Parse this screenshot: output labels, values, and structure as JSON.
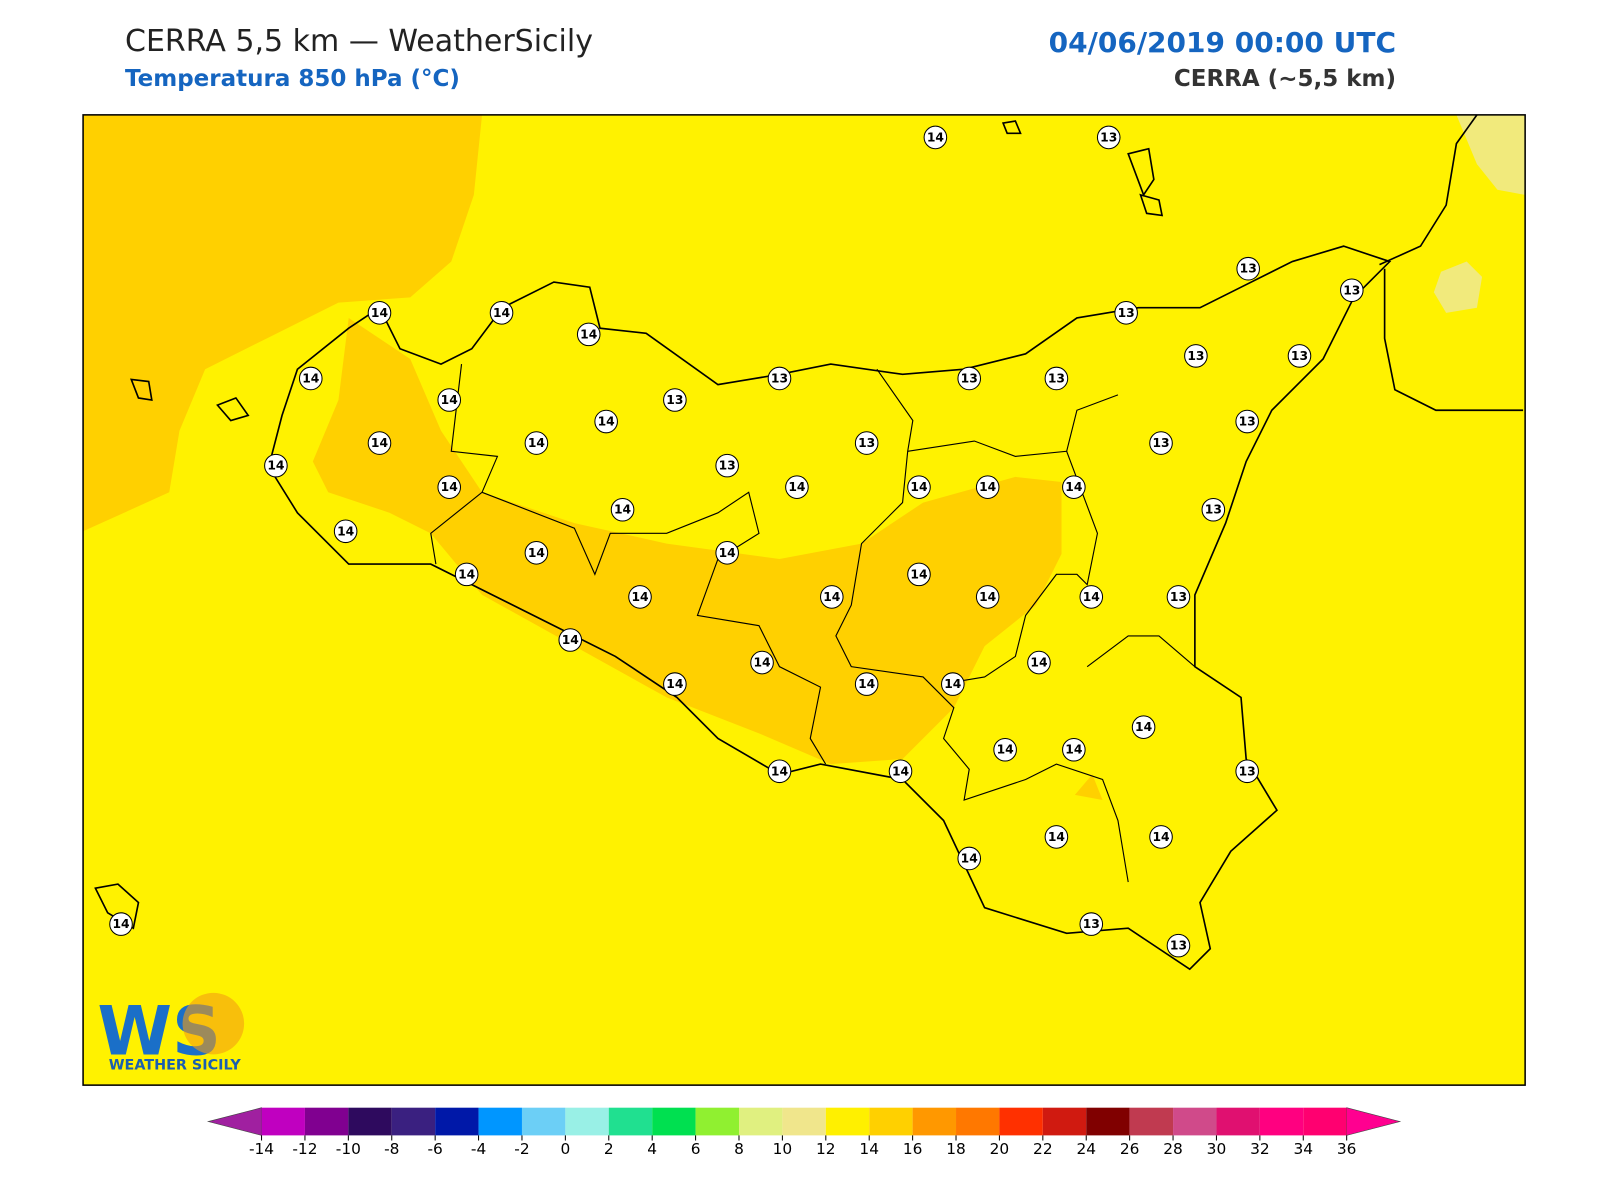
{
  "header": {
    "title": "CERRA 5,5 km — WeatherSicily",
    "subtitle": "Temperatura 850 hPa (°C)",
    "date": "04/06/2019 00:00 UTC",
    "model": "CERRA (~5,5 km)"
  },
  "stations": {
    "values": [
      14,
      13,
      13,
      13,
      14,
      14,
      14,
      13,
      13,
      13,
      14,
      13,
      13,
      13,
      14,
      13,
      14,
      13,
      14,
      14,
      13,
      13,
      14,
      13,
      14,
      14,
      14,
      14,
      14,
      14,
      13,
      14,
      14,
      14,
      14,
      14,
      14,
      14,
      14,
      14,
      13,
      14,
      14,
      14,
      14,
      14,
      14,
      14,
      14,
      14,
      14,
      14,
      13,
      14,
      14,
      14,
      13,
      13,
      14
    ]
  },
  "colorbar": {
    "ticks": [
      -14,
      -12,
      -10,
      -8,
      -6,
      -4,
      -2,
      0,
      2,
      4,
      6,
      8,
      10,
      12,
      14,
      16,
      18,
      20,
      22,
      24,
      26,
      28,
      30,
      32,
      34,
      36
    ],
    "colors": [
      "#c000c0",
      "#800090",
      "#2e0a5e",
      "#3a2080",
      "#0018a8",
      "#0096ff",
      "#6ccff6",
      "#99f0e6",
      "#20e090",
      "#00e050",
      "#90f030",
      "#e0f080",
      "#f0e68c",
      "#fff000",
      "#ffd000",
      "#ff9800",
      "#ff7800",
      "#ff3000",
      "#d01a10",
      "#800000",
      "#c03a50",
      "#d04a8a",
      "#e01070",
      "#ff0080",
      "#ff0070"
    ],
    "under": "#a020a0",
    "over": "#ff0090"
  },
  "logo": {
    "mark": "WS",
    "text": "WEATHER SICILY"
  }
}
